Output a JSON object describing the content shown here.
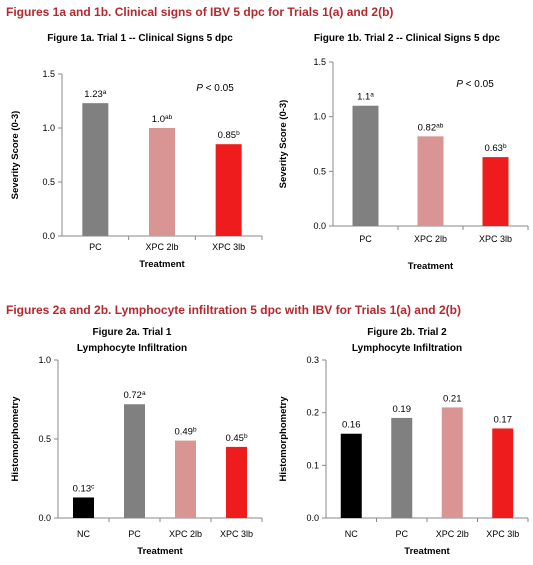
{
  "headings": {
    "fig1": "Figures 1a and 1b. Clinical signs of IBV 5 dpc for Trials 1(a) and 2(b)",
    "fig2": "Figures 2a and 2b. Lymphocyte infiltration 5 dpc with IBV for Trials 1(a) and 2(b)"
  },
  "colors": {
    "heading": "#b5282e",
    "NC": "#000000",
    "PC": "#808080",
    "XPC 2lb": "#d99594",
    "XPC 3lb": "#ee1c1c"
  },
  "chart_data": [
    {
      "type": "bar",
      "title": [
        "Figure 1a. Trial 1 -- Clinical Signs 5 dpc"
      ],
      "xlabel": "Treatment",
      "ylabel": "Severity Score (0-3)",
      "ylim": [
        0,
        1.5
      ],
      "yticks": [
        "0.0",
        "0.5",
        "1.0",
        "1.5"
      ],
      "categories": [
        "PC",
        "XPC 2lb",
        "XPC 3lb"
      ],
      "values": [
        1.23,
        1.0,
        0.85
      ],
      "labels": [
        "1.23a",
        "1.0ab",
        "0.85b"
      ],
      "annotation": "P < 0.05"
    },
    {
      "type": "bar",
      "title": [
        "Figure 1b. Trial 2 -- Clinical Signs 5 dpc"
      ],
      "xlabel": "Treatment",
      "ylabel": "Severity Score (0-3)",
      "ylim": [
        0,
        1.5
      ],
      "yticks": [
        "0.0",
        "0.5",
        "1.0",
        "1.5"
      ],
      "categories": [
        "PC",
        "XPC 2lb",
        "XPC 3lb"
      ],
      "values": [
        1.1,
        0.82,
        0.63
      ],
      "labels": [
        "1.1a",
        "0.82ab",
        "0.63b"
      ],
      "annotation": "P < 0.05"
    },
    {
      "type": "bar",
      "title": [
        "Figure 2a. Trial 1",
        "Lymphocyte Infiltration"
      ],
      "xlabel": "Treatment",
      "ylabel": "Histomorphometry",
      "ylim": [
        0,
        1.0
      ],
      "yticks": [
        "0.0",
        "0.5",
        "1.0"
      ],
      "categories": [
        "NC",
        "PC",
        "XPC 2lb",
        "XPC 3lb"
      ],
      "values": [
        0.13,
        0.72,
        0.49,
        0.45
      ],
      "labels": [
        "0.13c",
        "0.72a",
        "0.49b",
        "0.45b"
      ]
    },
    {
      "type": "bar",
      "title": [
        "Figure 2b. Trial 2",
        "Lymphocyte Infiltration"
      ],
      "xlabel": "Treatment",
      "ylabel": "Histomorphometry",
      "ylim": [
        0,
        0.3
      ],
      "yticks": [
        "0.0",
        "0.1",
        "0.2",
        "0.3"
      ],
      "categories": [
        "NC",
        "PC",
        "XPC 2lb",
        "XPC 3lb"
      ],
      "values": [
        0.16,
        0.19,
        0.21,
        0.17
      ],
      "labels": [
        "0.16",
        "0.19",
        "0.21",
        "0.17"
      ]
    }
  ]
}
